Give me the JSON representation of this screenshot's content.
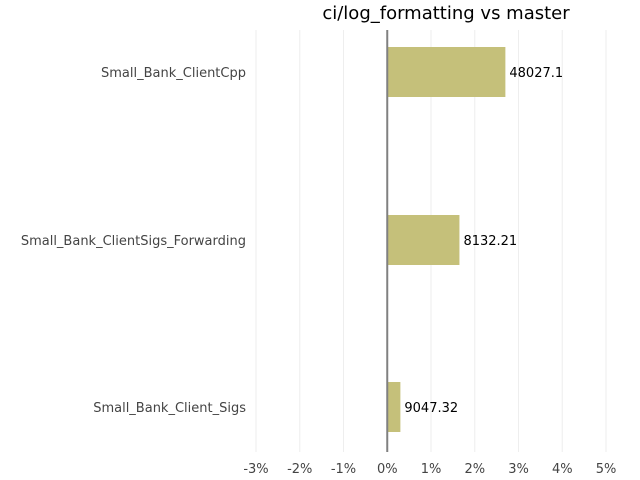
{
  "chart_data": {
    "type": "bar",
    "orientation": "horizontal",
    "title": "ci/log_formatting vs master",
    "categories": [
      "Small_Bank_ClientCpp",
      "Small_Bank_ClientSigs_Forwarding",
      "Small_Bank_Client_Sigs"
    ],
    "values": [
      2.7,
      1.65,
      0.3
    ],
    "value_unit": "%",
    "data_labels": [
      "48027.1",
      "8132.21",
      "9047.32"
    ],
    "xlim": [
      -3,
      5
    ],
    "xticks": [
      -3,
      -2,
      -1,
      0,
      1,
      2,
      3,
      4,
      5
    ],
    "xtick_labels": [
      "-3%",
      "-2%",
      "-1%",
      "0%",
      "1%",
      "2%",
      "3%",
      "4%",
      "5%"
    ],
    "xlabel": "",
    "ylabel": "",
    "bar_color": "#c5c07a",
    "zero_line_color": "#808080",
    "grid": true,
    "grid_color": "#eeeeee",
    "legend": "none"
  }
}
